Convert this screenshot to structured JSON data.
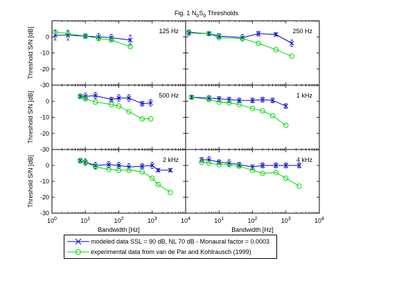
{
  "figure": {
    "title_main": "Fig. 1 N",
    "title_sub1": "0",
    "title_mid": "S",
    "title_sub2": "0",
    "title_end": " Thresholds"
  },
  "legend": {
    "position": "bottom",
    "modeled_label": "modeled data SSL = 90 dB, NL 70 dB  - Monaural factor = 0.0003",
    "experimental_label": "experimental data from van de Par and Kohlrausch (1999)"
  },
  "colors": {
    "modeled": "#0000cc",
    "experimental": "#00dd00"
  },
  "chart_data": [
    {
      "type": "line",
      "panel_label": "125 Hz",
      "xlabel": "",
      "ylabel": "Threshold S/N [dB]",
      "x_scale": "log",
      "xlim": [
        1,
        10000
      ],
      "ylim": [
        -30,
        10
      ],
      "y_ticks": [
        0,
        -10,
        -20,
        -30
      ],
      "x_ticks": [],
      "series": [
        {
          "name": "modeled",
          "x": [
            1.25,
            3,
            10,
            25,
            60,
            220
          ],
          "y": [
            1,
            1,
            0.5,
            0,
            -0.5,
            -2
          ],
          "err": [
            3,
            3,
            1.5,
            2,
            2,
            3
          ]
        },
        {
          "name": "experimental",
          "x": [
            1.25,
            3,
            10,
            25,
            60,
            220
          ],
          "y": [
            3,
            2,
            0.5,
            -1,
            -2,
            -6
          ]
        }
      ]
    },
    {
      "type": "line",
      "panel_label": "250 Hz",
      "xlabel": "",
      "ylabel": "",
      "x_scale": "log",
      "xlim": [
        1,
        10000
      ],
      "ylim": [
        -30,
        10
      ],
      "y_ticks": [],
      "x_ticks": [],
      "series": [
        {
          "name": "modeled",
          "x": [
            1.25,
            5,
            10,
            50,
            150,
            500,
            1500
          ],
          "y": [
            2.5,
            2,
            0.5,
            -0.5,
            2,
            1.5,
            -4
          ],
          "err": [
            1.5,
            1,
            1.5,
            2,
            1.5,
            1,
            2
          ]
        },
        {
          "name": "experimental",
          "x": [
            1.25,
            5,
            10,
            50,
            150,
            500,
            1500
          ],
          "y": [
            3,
            2,
            -0.5,
            -1,
            -4,
            -8,
            -12
          ]
        }
      ]
    },
    {
      "type": "line",
      "panel_label": "500 Hz",
      "xlabel": "",
      "ylabel": "Threshold S/N [dB]",
      "x_scale": "log",
      "xlim": [
        1,
        10000
      ],
      "ylim": [
        -30,
        10
      ],
      "y_ticks": [
        0,
        -10,
        -20,
        -30
      ],
      "x_ticks": [],
      "series": [
        {
          "name": "modeled",
          "x": [
            7,
            10,
            20,
            60,
            100,
            200,
            500,
            900
          ],
          "y": [
            3,
            3,
            3.5,
            1,
            2,
            2,
            -1.5,
            -1
          ],
          "err": [
            1.5,
            2,
            2,
            1.5,
            2,
            2,
            1.5,
            2
          ]
        },
        {
          "name": "experimental",
          "x": [
            7,
            10,
            20,
            60,
            100,
            200,
            500,
            900
          ],
          "y": [
            3,
            1.5,
            -0.5,
            -2,
            -3,
            -6.5,
            -11,
            -11
          ]
        }
      ]
    },
    {
      "type": "line",
      "panel_label": "1 kHz",
      "xlabel": "",
      "ylabel": "",
      "x_scale": "log",
      "xlim": [
        1,
        10000
      ],
      "ylim": [
        -30,
        10
      ],
      "y_ticks": [],
      "x_ticks": [],
      "series": [
        {
          "name": "modeled",
          "x": [
            1.5,
            5,
            10,
            20,
            40,
            100,
            200,
            400,
            1000
          ],
          "y": [
            2.5,
            2,
            1.5,
            1,
            0.5,
            0.5,
            1,
            0.5,
            -3
          ],
          "err": [
            1,
            1.5,
            1.5,
            1.5,
            1.5,
            1.5,
            1.5,
            1.5,
            1.5
          ]
        },
        {
          "name": "experimental",
          "x": [
            1.5,
            5,
            10,
            20,
            40,
            100,
            200,
            400,
            1000
          ],
          "y": [
            2.5,
            1,
            -0.5,
            -1,
            -2,
            -4.5,
            -6,
            -9,
            -15
          ]
        }
      ]
    },
    {
      "type": "line",
      "panel_label": "2 kHz",
      "xlabel": "Bandwidth [Hz]",
      "ylabel": "Threshold S/N [dB]",
      "x_scale": "log",
      "xlim": [
        1,
        10000
      ],
      "ylim": [
        -30,
        10
      ],
      "y_ticks": [
        0,
        -10,
        -20,
        -30
      ],
      "x_ticks": [
        "10^0",
        "10^1",
        "10^2",
        "10^3",
        "10^4"
      ],
      "series": [
        {
          "name": "modeled",
          "x": [
            7,
            10,
            20,
            50,
            100,
            200,
            500,
            1000,
            1500,
            3500
          ],
          "y": [
            3,
            2,
            0,
            0.5,
            0,
            -1,
            -0.5,
            0,
            -3,
            -3
          ],
          "err": [
            1.5,
            2,
            2,
            2,
            2,
            2,
            1.5,
            2,
            1,
            1
          ]
        },
        {
          "name": "experimental",
          "x": [
            7,
            10,
            20,
            50,
            100,
            200,
            500,
            1000,
            1500,
            3500
          ],
          "y": [
            3,
            2,
            -1,
            -2.5,
            -3,
            -3,
            -4,
            -8,
            -12,
            -17
          ]
        }
      ]
    },
    {
      "type": "line",
      "panel_label": "4 kHz",
      "xlabel": "Bandwidth [Hz]",
      "ylabel": "",
      "x_scale": "log",
      "xlim": [
        1,
        10000
      ],
      "ylim": [
        -30,
        10
      ],
      "y_ticks": [],
      "x_ticks": [
        "",
        "10^1",
        "10^2",
        "10^3",
        "10^4"
      ],
      "series": [
        {
          "name": "modeled",
          "x": [
            3,
            5,
            10,
            20,
            40,
            100,
            200,
            500,
            1000,
            2500
          ],
          "y": [
            3.5,
            3.5,
            2,
            1.5,
            0.5,
            -1,
            0,
            0,
            0,
            0
          ],
          "err": [
            1.5,
            2,
            1.5,
            2,
            1.5,
            1.5,
            1.5,
            1.5,
            1.5,
            1.5
          ]
        },
        {
          "name": "experimental",
          "x": [
            3,
            5,
            10,
            20,
            40,
            100,
            200,
            500,
            1000,
            2500
          ],
          "y": [
            2,
            1.5,
            0.5,
            0.5,
            -0.5,
            -3,
            -5,
            -4.5,
            -8,
            -13
          ]
        }
      ]
    }
  ]
}
